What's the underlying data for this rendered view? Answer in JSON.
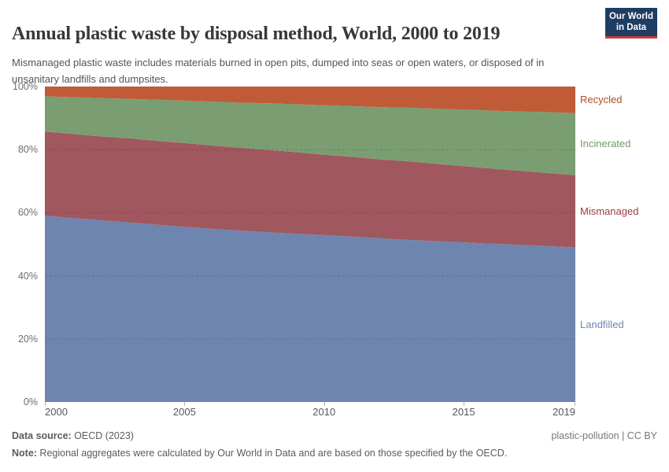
{
  "header": {
    "title": "Annual plastic waste by disposal method, World, 2000 to 2019",
    "subtitle": "Mismanaged plastic waste includes materials burned in open pits, dumped into seas or open waters, or disposed of in unsanitary landfills and dumpsites.",
    "logo_line1": "Our World",
    "logo_line2": "in Data",
    "logo_bg": "#1d3d63",
    "logo_accent": "#cf3b32"
  },
  "chart_data": {
    "type": "area",
    "stacked": true,
    "unit": "percent",
    "title": "Annual plastic waste by disposal method, World, 2000 to 2019",
    "x": [
      2000,
      2001,
      2002,
      2003,
      2004,
      2005,
      2006,
      2007,
      2008,
      2009,
      2010,
      2011,
      2012,
      2013,
      2014,
      2015,
      2016,
      2017,
      2018,
      2019
    ],
    "series": [
      {
        "name": "Landfilled",
        "color": "#6e85b0",
        "label_color": "#6e87b6",
        "values": [
          59.0,
          58.3,
          57.6,
          56.9,
          56.2,
          55.5,
          54.9,
          54.3,
          53.8,
          53.3,
          52.9,
          52.4,
          51.9,
          51.4,
          51.0,
          50.6,
          50.2,
          49.8,
          49.4,
          49.0
        ]
      },
      {
        "name": "Mismanaged",
        "color": "#a0575e",
        "label_color": "#9c3a42",
        "values": [
          26.7,
          26.7,
          26.6,
          26.7,
          26.6,
          26.6,
          26.4,
          26.3,
          26.1,
          25.9,
          25.5,
          25.3,
          25.0,
          24.9,
          24.5,
          24.2,
          23.8,
          23.5,
          23.2,
          22.9
        ]
      },
      {
        "name": "Incinerated",
        "color": "#7a9e71",
        "label_color": "#6f9b65",
        "values": [
          11.2,
          11.6,
          12.1,
          12.5,
          13.0,
          13.4,
          13.9,
          14.3,
          14.8,
          15.2,
          15.7,
          16.1,
          16.6,
          17.0,
          17.5,
          17.9,
          18.4,
          18.8,
          19.3,
          19.7
        ]
      },
      {
        "name": "Recycled",
        "color": "#c05b38",
        "label_color": "#ad4e26",
        "values": [
          3.1,
          3.4,
          3.7,
          3.9,
          4.2,
          4.5,
          4.8,
          5.1,
          5.3,
          5.6,
          5.9,
          6.2,
          6.5,
          6.7,
          7.0,
          7.3,
          7.6,
          7.9,
          8.1,
          8.4
        ]
      }
    ],
    "ylim": [
      0,
      100
    ],
    "yticks": [
      {
        "value": 0,
        "label": "0%"
      },
      {
        "value": 20,
        "label": "20%"
      },
      {
        "value": 40,
        "label": "40%"
      },
      {
        "value": 60,
        "label": "60%"
      },
      {
        "value": 80,
        "label": "80%"
      },
      {
        "value": 100,
        "label": "100%"
      }
    ],
    "xticks": [
      2000,
      2005,
      2010,
      2015,
      2019
    ],
    "grid": "dashed-horizontal",
    "legend_position": "right"
  },
  "footer": {
    "source_label": "Data source:",
    "source_value": " OECD (2023)",
    "rights": "plastic-pollution | CC BY",
    "note_label": "Note:",
    "note_value": " Regional aggregates were calculated by Our World in Data and are based on those specified by the OECD."
  }
}
